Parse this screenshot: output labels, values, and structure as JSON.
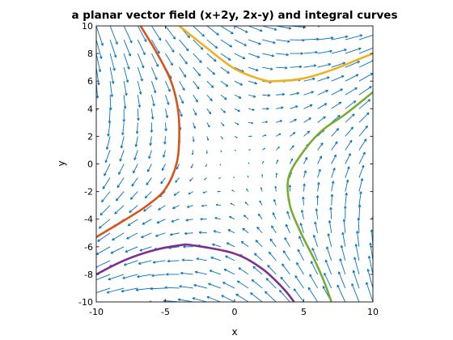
{
  "chart_data": {
    "type": "quiver",
    "title": "a planar vector field (x+2y, 2x-y) and integral curves",
    "xlabel": "x",
    "ylabel": "y",
    "xlim": [
      -10,
      10
    ],
    "ylim": [
      -10,
      10
    ],
    "xticks": [
      -10,
      -5,
      0,
      5,
      10
    ],
    "xtick_labels": [
      "-10",
      "-5",
      "0",
      "5",
      "10"
    ],
    "yticks": [
      -10,
      -8,
      -6,
      -4,
      -2,
      0,
      2,
      4,
      6,
      8,
      10
    ],
    "ytick_labels": [
      "-10",
      "-8",
      "-6",
      "-4",
      "-2",
      "0",
      "2",
      "4",
      "6",
      "8",
      "10"
    ],
    "grid": false,
    "aspect": "equal",
    "vector_field": {
      "u": "x+2y",
      "v": "2x-y",
      "grid_min": -10,
      "grid_max": 10,
      "grid_step": 1,
      "color": "#0072BD"
    },
    "series": [
      {
        "color": "#D95319",
        "points": [
          [
            -6.8,
            10
          ],
          [
            -5.6,
            8
          ],
          [
            -4.6,
            6
          ],
          [
            -4.1,
            4
          ],
          [
            -4,
            2
          ],
          [
            -4.2,
            0
          ],
          [
            -5,
            -1.8
          ],
          [
            -6.3,
            -3
          ],
          [
            -8,
            -4.1
          ],
          [
            -10,
            -5.3
          ]
        ]
      },
      {
        "color": "#EDB120",
        "points": [
          [
            -4,
            10
          ],
          [
            -2,
            8.4
          ],
          [
            0,
            6.9
          ],
          [
            2,
            6.1
          ],
          [
            3,
            6
          ],
          [
            5,
            6.2
          ],
          [
            7,
            6.8
          ],
          [
            9,
            7.6
          ],
          [
            10,
            8
          ]
        ]
      },
      {
        "color": "#7E2F8E",
        "points": [
          [
            -10,
            -8
          ],
          [
            -8,
            -7
          ],
          [
            -6,
            -6.3
          ],
          [
            -4,
            -5.9
          ],
          [
            -3,
            -5.9
          ],
          [
            0,
            -6.5
          ],
          [
            2,
            -7.6
          ],
          [
            3.5,
            -9
          ],
          [
            4.3,
            -10
          ]
        ]
      },
      {
        "color": "#77AC30",
        "points": [
          [
            10,
            5.2
          ],
          [
            8,
            3.6
          ],
          [
            6.3,
            2.4
          ],
          [
            4.9,
            0.8
          ],
          [
            3.9,
            -1
          ],
          [
            4,
            -3
          ],
          [
            4.8,
            -5
          ],
          [
            5.8,
            -7
          ],
          [
            6.5,
            -8.6
          ],
          [
            7,
            -10
          ]
        ]
      }
    ]
  }
}
